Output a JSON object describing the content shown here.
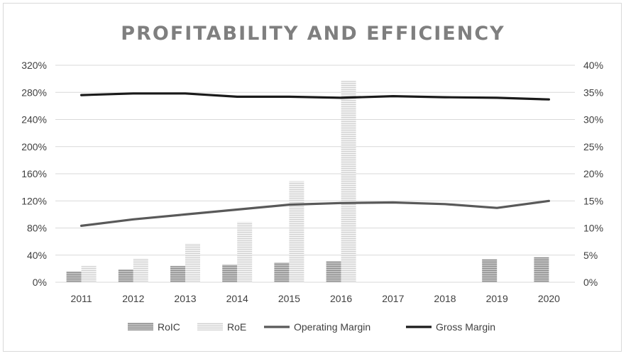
{
  "chart_data": {
    "type": "bar",
    "title": "PROFITABILITY AND EFFICIENCY",
    "categories": [
      "2011",
      "2012",
      "2013",
      "2014",
      "2015",
      "2016",
      "2017",
      "2018",
      "2019",
      "2020"
    ],
    "y_left": {
      "ticks": [
        "0%",
        "40%",
        "80%",
        "120%",
        "160%",
        "200%",
        "240%",
        "280%",
        "320%"
      ],
      "range": [
        0,
        320
      ]
    },
    "y_right": {
      "ticks": [
        "0%",
        "5%",
        "10%",
        "15%",
        "20%",
        "25%",
        "30%",
        "35%",
        "40%"
      ],
      "range": [
        0,
        40
      ]
    },
    "grid": true,
    "legend_position": "bottom",
    "series": [
      {
        "name": "RoIC",
        "kind": "bar",
        "axis": "left",
        "color": "#a6a6a6",
        "values": [
          16,
          19,
          24,
          26,
          29,
          31,
          null,
          null,
          34,
          37
        ]
      },
      {
        "name": "RoE",
        "kind": "bar",
        "axis": "left",
        "color": "#e0e0e0",
        "values": [
          24,
          35,
          57,
          89,
          149,
          297,
          null,
          null,
          null,
          null
        ]
      },
      {
        "name": "Operating Margin",
        "kind": "line",
        "axis": "right",
        "color": "#595959",
        "values": [
          10.4,
          11.6,
          12.5,
          13.4,
          14.3,
          14.6,
          14.7,
          14.4,
          13.7,
          15.0
        ]
      },
      {
        "name": "Gross Margin",
        "kind": "line",
        "axis": "right",
        "color": "#1a1a1a",
        "values": [
          34.5,
          34.8,
          34.8,
          34.2,
          34.2,
          34.0,
          34.3,
          34.1,
          34.0,
          33.7
        ]
      }
    ]
  }
}
